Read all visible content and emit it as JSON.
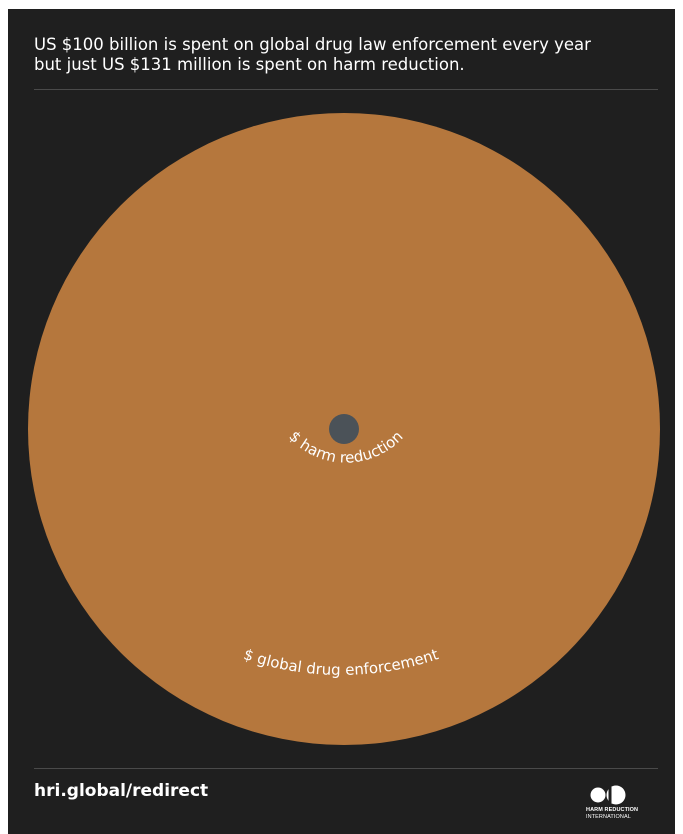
{
  "headline": {
    "line1": "US $100 billion is spent on global drug law enforcement every year",
    "line2": "but just US $131 million is spent on harm reduction."
  },
  "chart_data": {
    "type": "proportional-area-circles",
    "series": [
      {
        "name": "$ global drug enforcement",
        "value": 100000000000,
        "unit": "USD",
        "color": "#b5773d"
      },
      {
        "name": "$ harm reduction",
        "value": 131000000,
        "unit": "USD",
        "color": "#4b5258"
      }
    ]
  },
  "footer": {
    "url": "hri.global/redirect",
    "logo_line1": "HARM REDUCTION",
    "logo_line2": "INTERNATIONAL"
  },
  "colors": {
    "background": "#1f1f1f",
    "enforcement": "#b5773d",
    "harm_reduction": "#4b5258",
    "text": "#ffffff"
  }
}
